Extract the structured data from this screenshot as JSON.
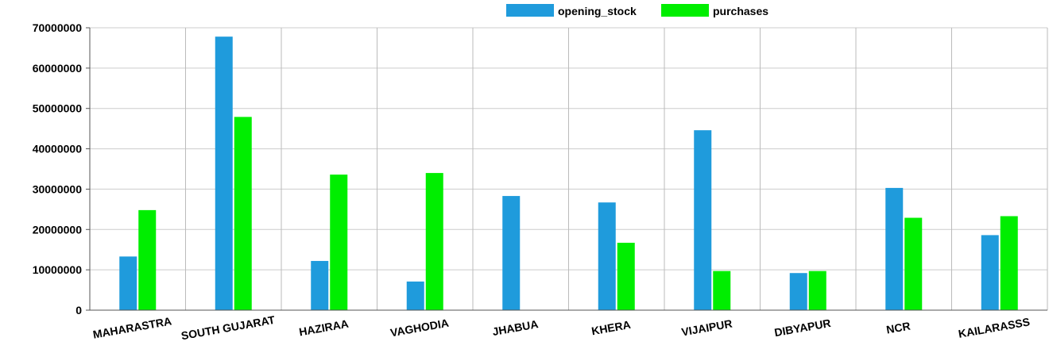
{
  "chart_data": {
    "type": "bar",
    "categories": [
      "MAHARASTRA",
      "SOUTH GUJARAT",
      "HAZIRAA",
      "VAGHODIA",
      "JHABUA",
      "KHERA",
      "VIJAIPUR",
      "DIBYAPUR",
      "NCR",
      "KAILARASSS"
    ],
    "series": [
      {
        "name": "opening_stock",
        "color": "#1f9bdc",
        "values": [
          13300000,
          67800000,
          12200000,
          7100000,
          28300000,
          26700000,
          44600000,
          9200000,
          30300000,
          18600000
        ]
      },
      {
        "name": "purchases",
        "color": "#00ee00",
        "values": [
          24800000,
          47900000,
          33600000,
          34000000,
          0,
          16700000,
          9700000,
          9700000,
          22900000,
          23300000
        ]
      }
    ],
    "yticks": [
      "0",
      "10000000",
      "20000000",
      "30000000",
      "40000000",
      "50000000",
      "60000000",
      "70000000"
    ],
    "ylim": [
      0,
      70000000
    ],
    "legend": "top-center",
    "grid": true
  }
}
